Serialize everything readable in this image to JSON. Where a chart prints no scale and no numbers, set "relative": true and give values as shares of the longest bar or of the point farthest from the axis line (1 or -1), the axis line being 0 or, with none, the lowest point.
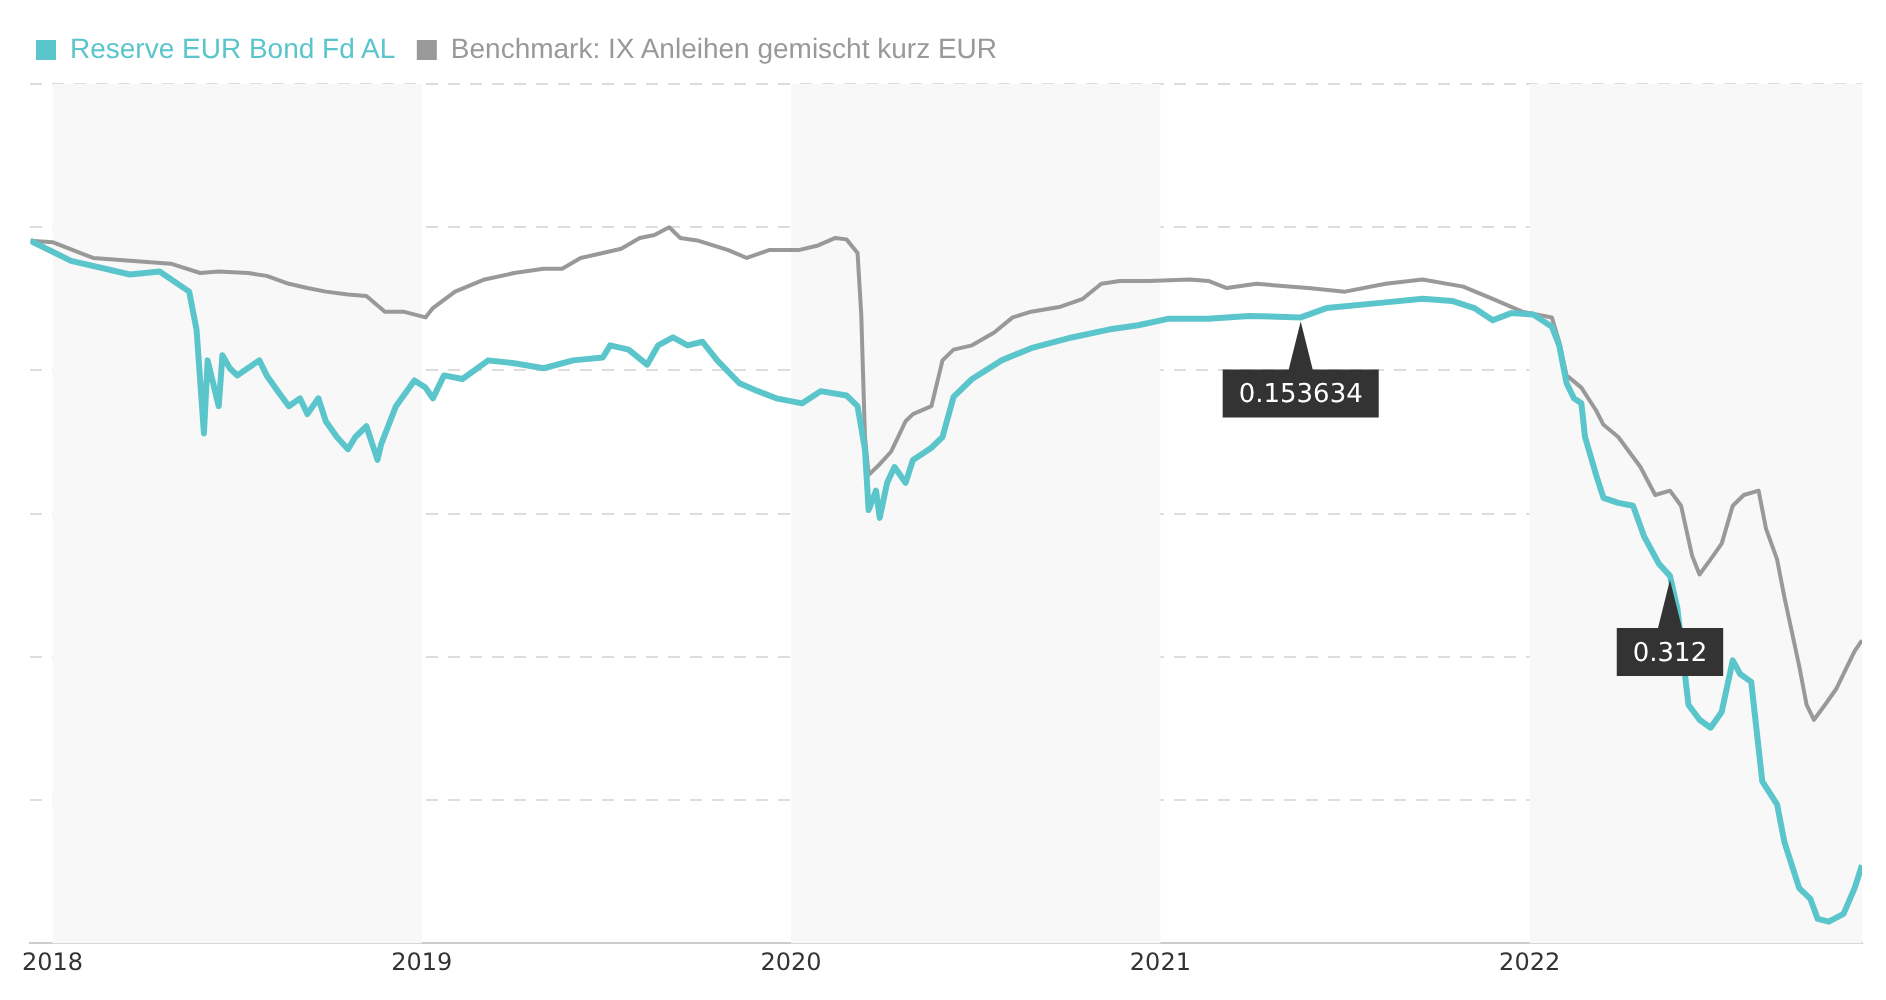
{
  "chart_data": {
    "type": "line",
    "relative": true,
    "legend": "top left",
    "grid": "y",
    "marker": "none",
    "line_style": "solid",
    "xlim": [
      2017.94,
      2022.9
    ],
    "xticks": [
      2018,
      2019,
      2020,
      2021,
      2022
    ],
    "bands": [
      {
        "axis": "x",
        "from": 2018,
        "to": 2019,
        "color": "#f8f8f8"
      },
      {
        "axis": "x",
        "from": 2020,
        "to": 2021,
        "color": "#f8f8f8"
      },
      {
        "axis": "x",
        "from": 2022,
        "to": 2022.9,
        "color": "#f8f8f8"
      }
    ],
    "annotations": [
      {
        "text": "0.153634",
        "x": 2021.38,
        "y": 0.874
      },
      {
        "text": "0.312",
        "x": 2022.38,
        "y": 0.513
      }
    ],
    "series": [
      {
        "name": "Reserve EUR Bond Fd AL",
        "color": "#5bc5cc",
        "x": [
          2017.94,
          2018.05,
          2018.21,
          2018.29,
          2018.37,
          2018.39,
          2018.41,
          2018.42,
          2018.45,
          2018.46,
          2018.48,
          2018.5,
          2018.56,
          2018.58,
          2018.61,
          2018.64,
          2018.67,
          2018.69,
          2018.72,
          2018.74,
          2018.77,
          2018.8,
          2018.82,
          2018.85,
          2018.88,
          2018.89,
          2018.93,
          2018.98,
          2019.01,
          2019.03,
          2019.06,
          2019.11,
          2019.18,
          2019.25,
          2019.33,
          2019.41,
          2019.49,
          2019.51,
          2019.56,
          2019.61,
          2019.64,
          2019.68,
          2019.72,
          2019.76,
          2019.8,
          2019.86,
          2019.91,
          2019.96,
          2020.03,
          2020.08,
          2020.15,
          2020.18,
          2020.2,
          2020.21,
          2020.23,
          2020.24,
          2020.26,
          2020.28,
          2020.31,
          2020.33,
          2020.38,
          2020.41,
          2020.44,
          2020.49,
          2020.57,
          2020.65,
          2020.76,
          2020.86,
          2020.94,
          2021.02,
          2021.13,
          2021.24,
          2021.38,
          2021.45,
          2021.61,
          2021.71,
          2021.79,
          2021.85,
          2021.9,
          2021.95,
          2022.01,
          2022.06,
          2022.08,
          2022.1,
          2022.12,
          2022.14,
          2022.15,
          2022.18,
          2022.2,
          2022.24,
          2022.28,
          2022.31,
          2022.35,
          2022.38,
          2022.4,
          2022.43,
          2022.46,
          2022.49,
          2022.52,
          2022.55,
          2022.57,
          2022.6,
          2022.63,
          2022.67,
          2022.69,
          2022.73,
          2022.76,
          2022.78,
          2022.81,
          2022.85,
          2022.88,
          2022.9
        ],
        "values": [
          0.981,
          0.953,
          0.934,
          0.938,
          0.91,
          0.857,
          0.712,
          0.814,
          0.75,
          0.821,
          0.803,
          0.793,
          0.814,
          0.793,
          0.771,
          0.75,
          0.761,
          0.739,
          0.761,
          0.729,
          0.707,
          0.69,
          0.707,
          0.722,
          0.675,
          0.697,
          0.75,
          0.786,
          0.776,
          0.761,
          0.793,
          0.788,
          0.814,
          0.81,
          0.803,
          0.814,
          0.818,
          0.835,
          0.829,
          0.808,
          0.835,
          0.846,
          0.835,
          0.84,
          0.814,
          0.782,
          0.771,
          0.761,
          0.754,
          0.771,
          0.765,
          0.75,
          0.69,
          0.605,
          0.632,
          0.594,
          0.643,
          0.665,
          0.643,
          0.675,
          0.692,
          0.707,
          0.763,
          0.788,
          0.814,
          0.831,
          0.846,
          0.857,
          0.863,
          0.872,
          0.872,
          0.876,
          0.874,
          0.887,
          0.895,
          0.9,
          0.897,
          0.887,
          0.87,
          0.88,
          0.878,
          0.861,
          0.835,
          0.782,
          0.761,
          0.754,
          0.707,
          0.654,
          0.622,
          0.615,
          0.611,
          0.568,
          0.53,
          0.513,
          0.468,
          0.333,
          0.312,
          0.301,
          0.323,
          0.395,
          0.376,
          0.365,
          0.226,
          0.194,
          0.141,
          0.077,
          0.062,
          0.034,
          0.03,
          0.041,
          0.077,
          0.109
        ]
      },
      {
        "name": "Benchmark: IX Anleihen gemischt kurz EUR",
        "color": "#999999",
        "x": [
          2017.94,
          2018.0,
          2018.11,
          2018.21,
          2018.32,
          2018.4,
          2018.45,
          2018.53,
          2018.58,
          2018.64,
          2018.69,
          2018.74,
          2018.8,
          2018.85,
          2018.9,
          2018.95,
          2019.01,
          2019.03,
          2019.09,
          2019.17,
          2019.25,
          2019.33,
          2019.38,
          2019.43,
          2019.49,
          2019.54,
          2019.59,
          2019.63,
          2019.67,
          2019.7,
          2019.75,
          2019.83,
          2019.88,
          2019.94,
          2020.02,
          2020.07,
          2020.12,
          2020.15,
          2020.18,
          2020.19,
          2020.2,
          2020.21,
          2020.24,
          2020.27,
          2020.29,
          2020.31,
          2020.33,
          2020.38,
          2020.41,
          2020.44,
          2020.49,
          2020.55,
          2020.6,
          2020.65,
          2020.73,
          2020.79,
          2020.84,
          2020.89,
          2020.97,
          2021.08,
          2021.13,
          2021.18,
          2021.26,
          2021.4,
          2021.5,
          2021.61,
          2021.71,
          2021.82,
          2021.9,
          2021.98,
          2022.06,
          2022.08,
          2022.1,
          2022.14,
          2022.18,
          2022.2,
          2022.24,
          2022.3,
          2022.34,
          2022.38,
          2022.41,
          2022.44,
          2022.46,
          2022.49,
          2022.52,
          2022.55,
          2022.58,
          2022.62,
          2022.64,
          2022.67,
          2022.69,
          2022.73,
          2022.75,
          2022.77,
          2022.8,
          2022.83,
          2022.85,
          2022.88,
          2022.9
        ],
        "values": [
          0.981,
          0.979,
          0.957,
          0.953,
          0.949,
          0.936,
          0.938,
          0.936,
          0.932,
          0.921,
          0.915,
          0.91,
          0.906,
          0.904,
          0.882,
          0.882,
          0.874,
          0.887,
          0.91,
          0.927,
          0.936,
          0.942,
          0.942,
          0.957,
          0.964,
          0.97,
          0.985,
          0.989,
          1,
          0.985,
          0.981,
          0.968,
          0.957,
          0.968,
          0.968,
          0.974,
          0.985,
          0.983,
          0.964,
          0.878,
          0.707,
          0.654,
          0.669,
          0.686,
          0.707,
          0.729,
          0.739,
          0.75,
          0.814,
          0.829,
          0.835,
          0.853,
          0.874,
          0.882,
          0.889,
          0.9,
          0.921,
          0.925,
          0.925,
          0.927,
          0.925,
          0.915,
          0.921,
          0.915,
          0.91,
          0.921,
          0.927,
          0.917,
          0.9,
          0.882,
          0.874,
          0.84,
          0.793,
          0.776,
          0.744,
          0.724,
          0.707,
          0.665,
          0.626,
          0.632,
          0.611,
          0.541,
          0.515,
          0.536,
          0.558,
          0.611,
          0.626,
          0.632,
          0.579,
          0.536,
          0.483,
          0.387,
          0.333,
          0.312,
          0.333,
          0.355,
          0.376,
          0.408,
          0.423
        ]
      }
    ]
  }
}
